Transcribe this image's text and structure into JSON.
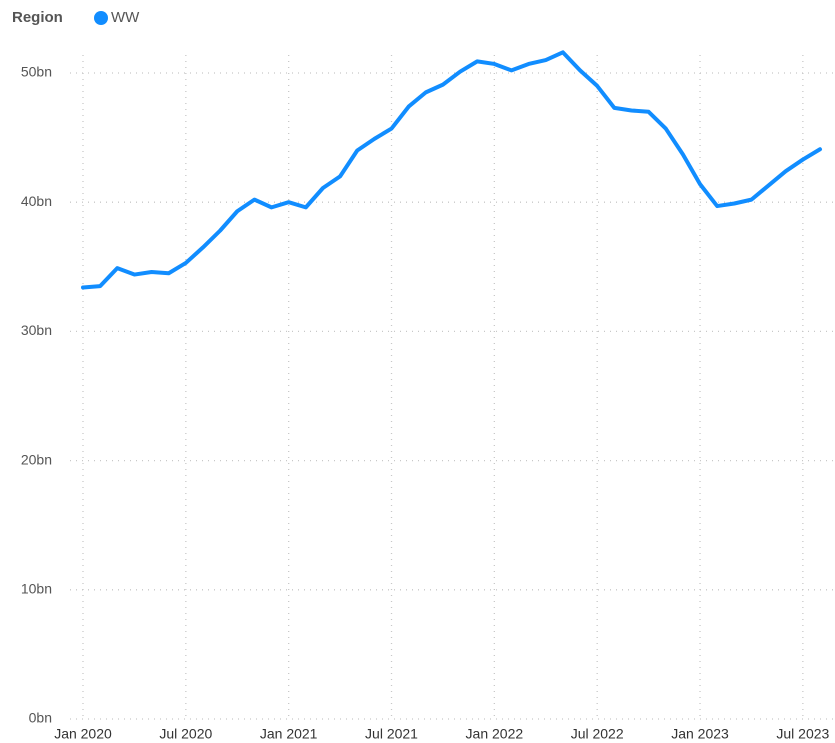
{
  "chart_data": {
    "type": "line",
    "legend_title": "Region",
    "legend": "top-left",
    "grid": true,
    "x": [
      "2020-01",
      "2020-02",
      "2020-03",
      "2020-04",
      "2020-05",
      "2020-06",
      "2020-07",
      "2020-08",
      "2020-09",
      "2020-10",
      "2020-11",
      "2020-12",
      "2021-01",
      "2021-02",
      "2021-03",
      "2021-04",
      "2021-05",
      "2021-06",
      "2021-07",
      "2021-08",
      "2021-09",
      "2021-10",
      "2021-11",
      "2021-12",
      "2022-01",
      "2022-02",
      "2022-03",
      "2022-04",
      "2022-05",
      "2022-06",
      "2022-07",
      "2022-08",
      "2022-09",
      "2022-10",
      "2022-11",
      "2022-12",
      "2023-01",
      "2023-02",
      "2023-03",
      "2023-04",
      "2023-05",
      "2023-06",
      "2023-07",
      "2023-08"
    ],
    "series": [
      {
        "name": "WW",
        "color": "#118dff",
        "values": [
          33.4,
          33.5,
          34.9,
          34.4,
          34.6,
          34.5,
          35.3,
          36.5,
          37.8,
          39.3,
          40.2,
          39.6,
          40.0,
          39.6,
          41.1,
          42.0,
          44.0,
          44.9,
          45.7,
          47.4,
          48.5,
          49.1,
          50.1,
          50.9,
          50.7,
          50.2,
          50.7,
          51.0,
          51.6,
          50.2,
          49.0,
          47.3,
          47.1,
          47.0,
          45.7,
          43.7,
          41.4,
          39.7,
          39.9,
          40.2,
          41.3,
          42.4,
          43.3,
          44.1
        ]
      }
    ],
    "xlim": [
      "2020-01",
      "2023-08"
    ],
    "xticks": [
      {
        "value": "2020-01",
        "label": "Jan 2020"
      },
      {
        "value": "2020-07",
        "label": "Jul 2020"
      },
      {
        "value": "2021-01",
        "label": "Jan 2021"
      },
      {
        "value": "2021-07",
        "label": "Jul 2021"
      },
      {
        "value": "2022-01",
        "label": "Jan 2022"
      },
      {
        "value": "2022-07",
        "label": "Jul 2022"
      },
      {
        "value": "2023-01",
        "label": "Jan 2023"
      },
      {
        "value": "2023-07",
        "label": "Jul 2023"
      }
    ],
    "ylim": [
      0,
      50
    ],
    "yticks": [
      {
        "value": 0,
        "label": "0bn"
      },
      {
        "value": 10,
        "label": "10bn"
      },
      {
        "value": 20,
        "label": "20bn"
      },
      {
        "value": 30,
        "label": "30bn"
      },
      {
        "value": 40,
        "label": "40bn"
      },
      {
        "value": 50,
        "label": "50bn"
      }
    ]
  }
}
